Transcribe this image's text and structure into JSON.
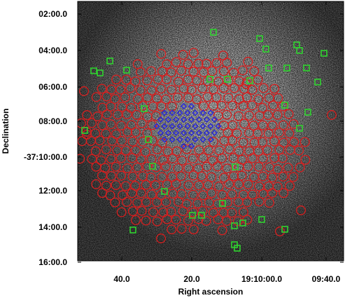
{
  "chart_data": {
    "type": "scatter",
    "title": "",
    "xlabel": "Right ascension",
    "ylabel": "Declination",
    "x_tick_labels": [
      "40.0",
      "20.0",
      "19:10:00.0",
      "09:40.0"
    ],
    "y_tick_labels": [
      "02:00.0",
      "04:00.0",
      "06:00.0",
      "08:00.0",
      "-37:10:00.0",
      "12:00.0",
      "14:00.0",
      "16:00.0"
    ],
    "background": "greyscale sky survey image of a globular cluster field",
    "markers": {
      "red_circles": {
        "symbol": "circle",
        "color": "#d81e1e",
        "description": "dense field pattern of pointings"
      },
      "blue_diamonds": {
        "symbol": "diamond",
        "color": "#2a2ad8",
        "description": "central cluster core pointings"
      },
      "green_squares": {
        "symbol": "square",
        "color": "#2fd32f",
        "description": "scattered pointings"
      }
    }
  }
}
